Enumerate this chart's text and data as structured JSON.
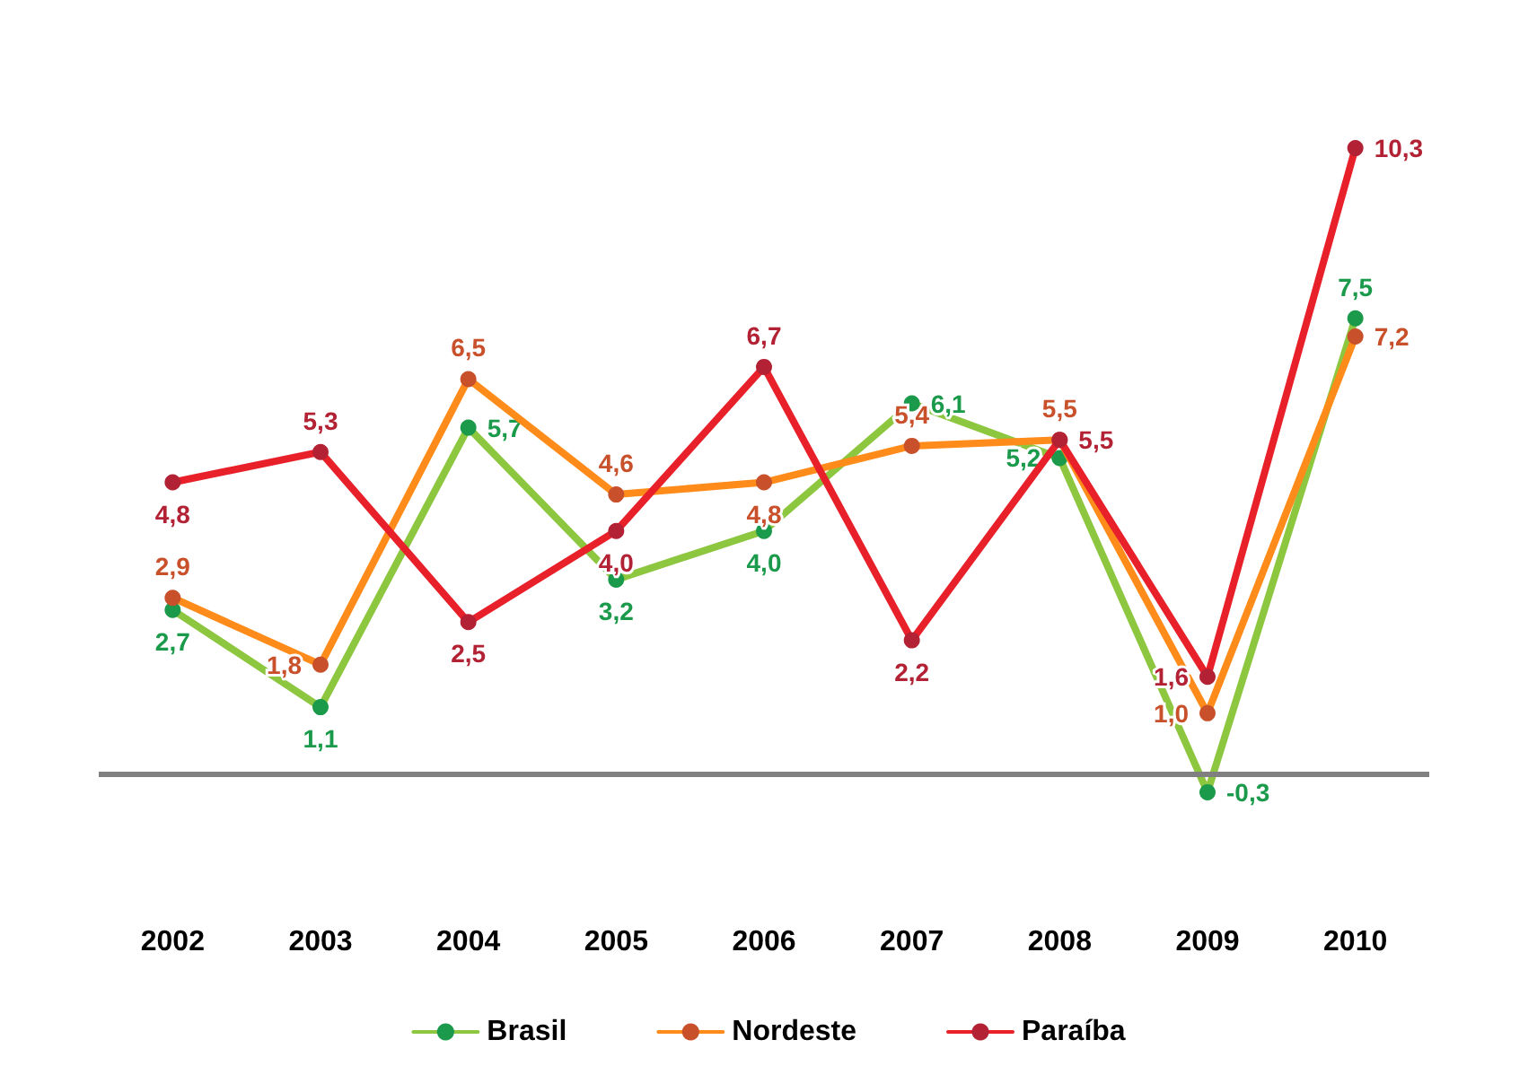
{
  "chart_data": {
    "type": "line",
    "categories": [
      "2002",
      "2003",
      "2004",
      "2005",
      "2006",
      "2007",
      "2008",
      "2009",
      "2010"
    ],
    "series": [
      {
        "name": "Brasil",
        "color": "#8dc63f",
        "values": [
          2.7,
          1.1,
          5.7,
          3.2,
          4.0,
          6.1,
          5.2,
          -0.3,
          7.5
        ],
        "value_labels": [
          "2,7",
          "1,1",
          "5,7",
          "3,2",
          "4,0",
          "6,1",
          "5,2",
          "-0,3",
          "7,5"
        ]
      },
      {
        "name": "Nordeste",
        "color": "#ff8c1a",
        "values": [
          2.9,
          1.8,
          6.5,
          4.6,
          4.8,
          5.4,
          5.5,
          1.0,
          7.2
        ],
        "value_labels": [
          "2,9",
          "1,8",
          "6,5",
          "4,6",
          "4,8",
          "5,4",
          "5,5",
          "1,0",
          "7,2"
        ]
      },
      {
        "name": "Paraíba",
        "color": "#e8202a",
        "values": [
          4.8,
          5.3,
          2.5,
          4.0,
          6.7,
          2.2,
          5.5,
          1.6,
          10.3
        ],
        "value_labels": [
          "4,8",
          "5,3",
          "2,5",
          "4,0",
          "6,7",
          "2,2",
          "5,5",
          "1,6",
          "10,3"
        ]
      }
    ],
    "ref_lines": [
      {
        "axis": "y",
        "value": 0,
        "color": "#808080"
      }
    ],
    "marker": "circle",
    "line_style": "solid",
    "legend": "bottom",
    "grid": false
  }
}
